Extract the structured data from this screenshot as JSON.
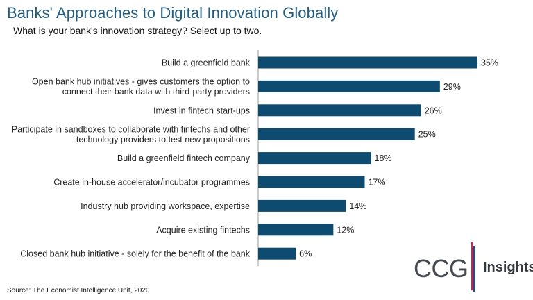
{
  "header": {
    "title": "Banks' Approaches to Digital Innovation Globally",
    "subtitle": "What is your bank's innovation strategy? Select up to two."
  },
  "footer": {
    "source": "Source: The Economist Intelligence Unit, 2020"
  },
  "logo": {
    "brand": "CCG",
    "product": "Insights",
    "accent_red": "#c8234b",
    "accent_blue": "#1f4f86"
  },
  "colors": {
    "bar": "#0d4b70",
    "axis": "#999999",
    "title": "#1f5f86"
  },
  "chart_data": {
    "type": "bar",
    "orientation": "horizontal",
    "title": "Banks' Approaches to Digital Innovation Globally",
    "subtitle": "What is your bank's innovation strategy? Select up to two.",
    "xlabel": "",
    "ylabel": "",
    "xlim": [
      0,
      35
    ],
    "grid": false,
    "categories": [
      [
        "Build a greenfield bank"
      ],
      [
        "Open bank hub initiatives - gives customers the option to",
        "connect their bank data with third-party providers"
      ],
      [
        "Invest in fintech start-ups"
      ],
      [
        "Participate in sandboxes to collaborate with fintechs and other",
        "technology providers to test new propositions"
      ],
      [
        "Build a greenfield fintech company"
      ],
      [
        "Create in-house accelerator/incubator programmes"
      ],
      [
        "Industry hub providing workspace, expertise"
      ],
      [
        "Acquire existing fintechs"
      ],
      [
        "Closed bank hub initiative - solely for the benefit of the bank"
      ]
    ],
    "values": [
      35,
      29,
      26,
      25,
      18,
      17,
      14,
      12,
      6
    ],
    "value_labels": [
      "35%",
      "29%",
      "26%",
      "25%",
      "18%",
      "17%",
      "14%",
      "12%",
      "6%"
    ]
  }
}
